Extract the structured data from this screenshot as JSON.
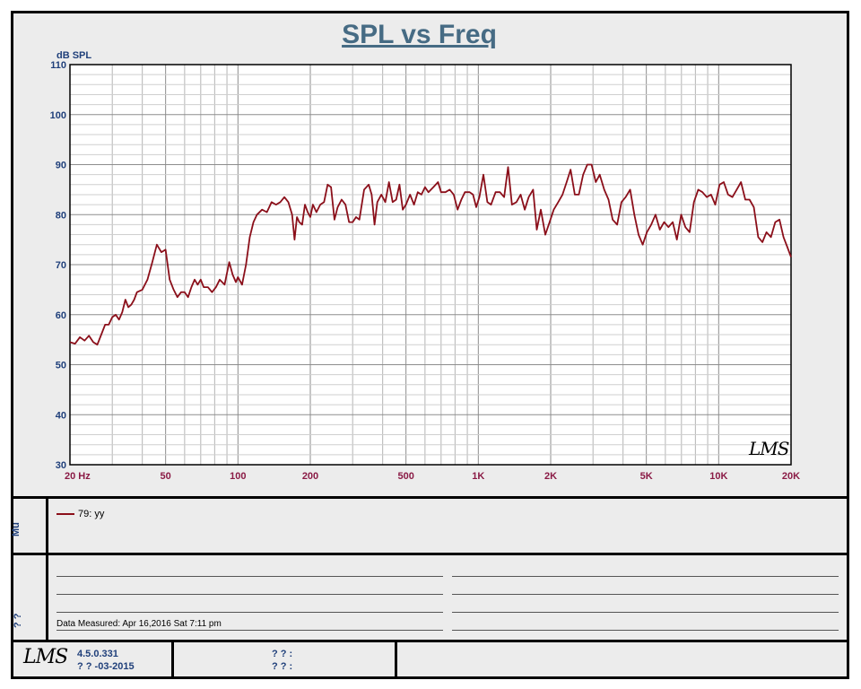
{
  "chart_data": {
    "type": "line",
    "title": "SPL vs Freq",
    "ylabel": "dB SPL",
    "xlabel": "",
    "x_scale": "log",
    "xlim": [
      20,
      20000
    ],
    "ylim": [
      30,
      110
    ],
    "yticks": [
      "30",
      "40",
      "50",
      "60",
      "70",
      "80",
      "90",
      "100",
      "110"
    ],
    "xticks": [
      {
        "v": 20,
        "label": "20  Hz"
      },
      {
        "v": 50,
        "label": "50"
      },
      {
        "v": 100,
        "label": "100"
      },
      {
        "v": 200,
        "label": "200"
      },
      {
        "v": 500,
        "label": "500"
      },
      {
        "v": 1000,
        "label": "1K"
      },
      {
        "v": 2000,
        "label": "2K"
      },
      {
        "v": 5000,
        "label": "5K"
      },
      {
        "v": 10000,
        "label": "10K"
      },
      {
        "v": 20000,
        "label": "20K"
      }
    ],
    "grid": true,
    "series": [
      {
        "name": "79: yy",
        "color": "#8b0f1a",
        "points": [
          [
            20,
            54.5
          ],
          [
            21,
            54.2
          ],
          [
            22,
            55.5
          ],
          [
            23,
            54.8
          ],
          [
            24,
            55.8
          ],
          [
            25,
            54.5
          ],
          [
            26,
            54
          ],
          [
            27,
            56
          ],
          [
            28,
            58
          ],
          [
            29,
            58
          ],
          [
            30,
            59.5
          ],
          [
            31,
            60
          ],
          [
            32,
            59
          ],
          [
            33,
            60.5
          ],
          [
            34,
            63
          ],
          [
            35,
            61.5
          ],
          [
            36,
            62
          ],
          [
            37,
            63
          ],
          [
            38,
            64.5
          ],
          [
            40,
            65
          ],
          [
            42,
            67
          ],
          [
            44,
            70.5
          ],
          [
            46,
            74
          ],
          [
            48,
            72.5
          ],
          [
            50,
            73
          ],
          [
            52,
            67
          ],
          [
            54,
            65
          ],
          [
            56,
            63.5
          ],
          [
            58,
            64.5
          ],
          [
            60,
            64.5
          ],
          [
            62,
            63.5
          ],
          [
            64,
            65.5
          ],
          [
            66,
            67
          ],
          [
            68,
            66
          ],
          [
            70,
            67
          ],
          [
            72,
            65.5
          ],
          [
            75,
            65.5
          ],
          [
            78,
            64.5
          ],
          [
            81,
            65.5
          ],
          [
            84,
            67
          ],
          [
            88,
            66
          ],
          [
            92,
            70.5
          ],
          [
            95,
            68
          ],
          [
            98,
            66.5
          ],
          [
            100,
            67.5
          ],
          [
            104,
            66
          ],
          [
            108,
            70
          ],
          [
            112,
            75.5
          ],
          [
            116,
            78.5
          ],
          [
            120,
            80
          ],
          [
            126,
            81
          ],
          [
            132,
            80.5
          ],
          [
            138,
            82.5
          ],
          [
            144,
            82
          ],
          [
            150,
            82.5
          ],
          [
            156,
            83.5
          ],
          [
            162,
            82.5
          ],
          [
            168,
            80
          ],
          [
            172,
            75
          ],
          [
            176,
            79.5
          ],
          [
            180,
            78.5
          ],
          [
            185,
            78
          ],
          [
            190,
            82
          ],
          [
            195,
            80.5
          ],
          [
            200,
            79.5
          ],
          [
            205,
            82
          ],
          [
            212,
            80.5
          ],
          [
            220,
            82
          ],
          [
            228,
            82.5
          ],
          [
            236,
            86
          ],
          [
            244,
            85.5
          ],
          [
            252,
            79
          ],
          [
            260,
            81.5
          ],
          [
            270,
            83
          ],
          [
            280,
            82
          ],
          [
            290,
            78.5
          ],
          [
            300,
            78.5
          ],
          [
            310,
            79.5
          ],
          [
            320,
            79
          ],
          [
            335,
            85
          ],
          [
            350,
            86
          ],
          [
            360,
            84
          ],
          [
            370,
            78
          ],
          [
            380,
            82.5
          ],
          [
            395,
            84
          ],
          [
            410,
            82.5
          ],
          [
            425,
            86.5
          ],
          [
            440,
            82.5
          ],
          [
            455,
            83
          ],
          [
            470,
            86
          ],
          [
            485,
            81
          ],
          [
            500,
            82
          ],
          [
            520,
            84
          ],
          [
            540,
            82
          ],
          [
            560,
            84.5
          ],
          [
            580,
            84
          ],
          [
            600,
            85.5
          ],
          [
            620,
            84.5
          ],
          [
            650,
            85.5
          ],
          [
            680,
            86.5
          ],
          [
            700,
            84.5
          ],
          [
            730,
            84.5
          ],
          [
            760,
            85
          ],
          [
            790,
            84
          ],
          [
            820,
            81
          ],
          [
            850,
            83
          ],
          [
            880,
            84.5
          ],
          [
            920,
            84.5
          ],
          [
            950,
            84
          ],
          [
            980,
            81.5
          ],
          [
            1010,
            83.5
          ],
          [
            1050,
            88
          ],
          [
            1090,
            82.5
          ],
          [
            1130,
            82
          ],
          [
            1180,
            84.5
          ],
          [
            1230,
            84.5
          ],
          [
            1280,
            83.5
          ],
          [
            1330,
            89.5
          ],
          [
            1380,
            82
          ],
          [
            1440,
            82.5
          ],
          [
            1500,
            84
          ],
          [
            1560,
            81
          ],
          [
            1620,
            83.5
          ],
          [
            1690,
            85
          ],
          [
            1750,
            77
          ],
          [
            1820,
            81
          ],
          [
            1900,
            76
          ],
          [
            1980,
            78.5
          ],
          [
            2060,
            81
          ],
          [
            2150,
            82.5
          ],
          [
            2240,
            84
          ],
          [
            2330,
            86.5
          ],
          [
            2420,
            89
          ],
          [
            2520,
            84
          ],
          [
            2620,
            84
          ],
          [
            2730,
            88
          ],
          [
            2840,
            90
          ],
          [
            2960,
            90
          ],
          [
            3080,
            86.5
          ],
          [
            3200,
            88
          ],
          [
            3340,
            85
          ],
          [
            3480,
            83
          ],
          [
            3620,
            79
          ],
          [
            3780,
            78
          ],
          [
            3940,
            82.5
          ],
          [
            4100,
            83.5
          ],
          [
            4280,
            85
          ],
          [
            4460,
            80
          ],
          [
            4640,
            76
          ],
          [
            4830,
            74
          ],
          [
            5030,
            76.5
          ],
          [
            5240,
            78
          ],
          [
            5460,
            80
          ],
          [
            5690,
            77
          ],
          [
            5930,
            78.5
          ],
          [
            6180,
            77.5
          ],
          [
            6440,
            78.5
          ],
          [
            6700,
            75
          ],
          [
            6980,
            80
          ],
          [
            7270,
            77.5
          ],
          [
            7570,
            76.5
          ],
          [
            7890,
            82.5
          ],
          [
            8220,
            85
          ],
          [
            8560,
            84.5
          ],
          [
            8920,
            83.5
          ],
          [
            9290,
            84
          ],
          [
            9680,
            82
          ],
          [
            10080,
            86
          ],
          [
            10500,
            86.5
          ],
          [
            10940,
            84
          ],
          [
            11400,
            83.5
          ],
          [
            11880,
            85
          ],
          [
            12380,
            86.5
          ],
          [
            12900,
            83
          ],
          [
            13440,
            83
          ],
          [
            14000,
            81.5
          ],
          [
            14600,
            75.5
          ],
          [
            15200,
            74.5
          ],
          [
            15800,
            76.5
          ],
          [
            16500,
            75.5
          ],
          [
            17200,
            78.5
          ],
          [
            17900,
            79
          ],
          [
            18600,
            75.5
          ],
          [
            19300,
            73.5
          ],
          [
            20000,
            71.5
          ]
        ]
      }
    ]
  },
  "legend": {
    "entries": [
      "79: yy"
    ]
  },
  "side_labels": {
    "legend_panel": "Mu",
    "notes_panel": "? ?"
  },
  "notes": {
    "data_measured": "Data Measured: Apr 16,2016  Sat  7:11 pm"
  },
  "footer": {
    "logo": "LMS",
    "version": "4.5.0.331",
    "date": "? ?  -03-2015",
    "field1": "? ? :",
    "field2": "? ? :"
  },
  "watermark": "LMS"
}
